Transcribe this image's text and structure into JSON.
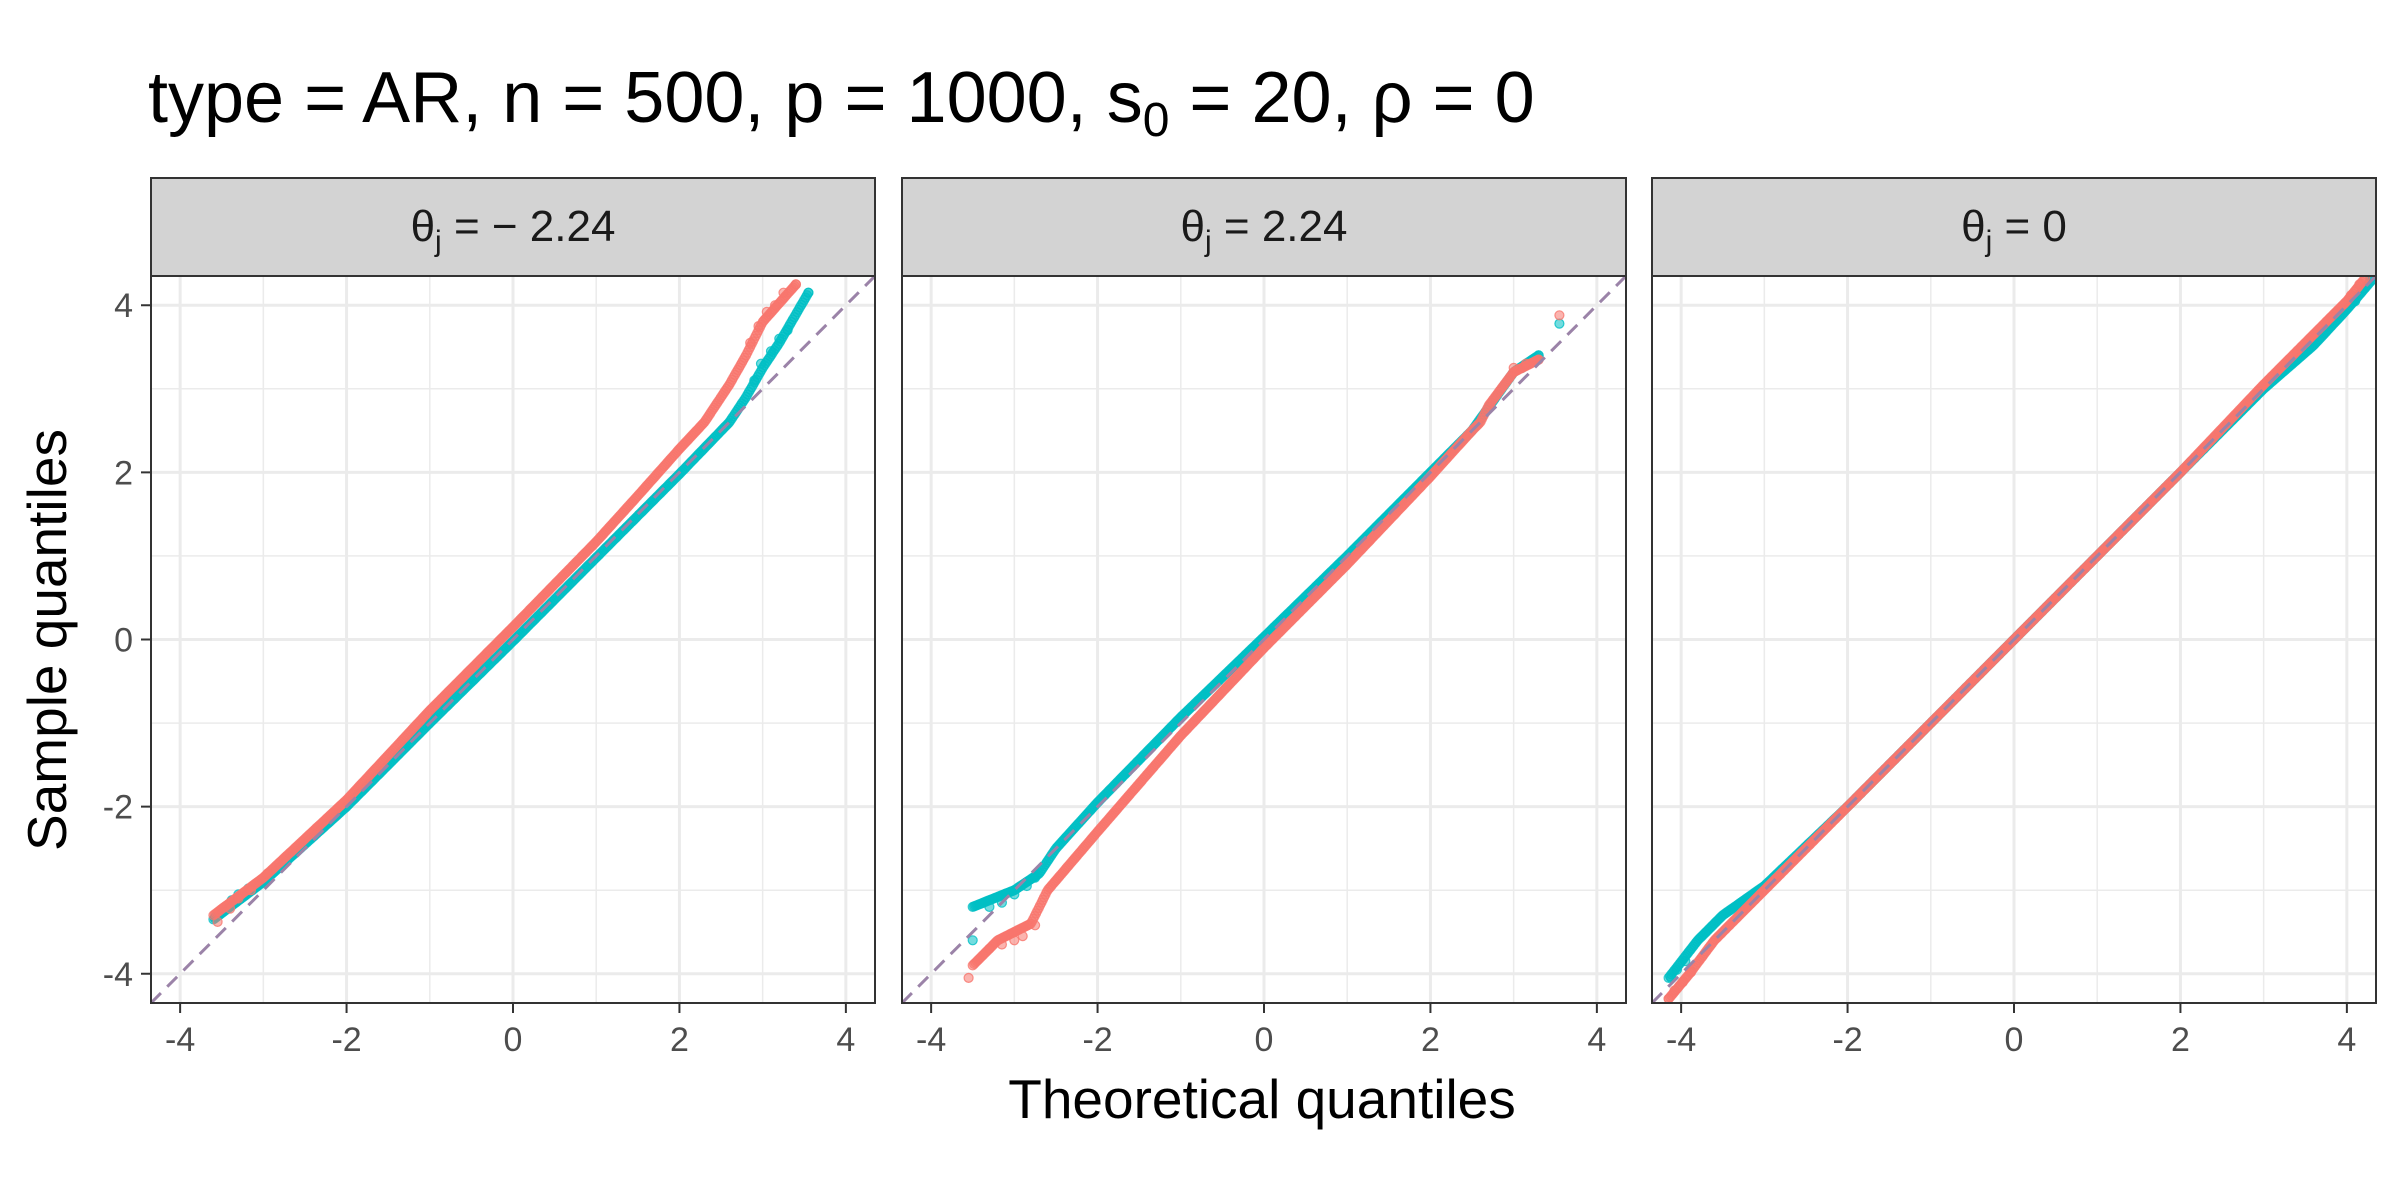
{
  "title": {
    "prefix": "type = AR, n = 500, p = 1000, s",
    "subscript": "0",
    "suffix": " = 20, ρ = 0"
  },
  "xlabel": "Theoretical quantiles",
  "ylabel": "Sample quantiles",
  "colors": {
    "series_red": "#F8766D",
    "series_teal": "#00BFC4",
    "reference_line": "#9B83A8",
    "strip_fill": "#D3D3D3",
    "grid": "#EBEBEB"
  },
  "chart_data": [
    {
      "type": "scatter",
      "panel_label": {
        "symbol": "θ",
        "subscript": "j",
        "value": " = − 2.24"
      },
      "xlim": [
        -4.35,
        4.35
      ],
      "ylim": [
        -4.35,
        4.35
      ],
      "x_ticks": [
        "-4",
        "-2",
        "0",
        "2",
        "4"
      ],
      "y_ticks": [
        "4",
        "2",
        "0",
        "-2",
        "-4"
      ],
      "grid": true,
      "reference_line": {
        "slope": 1,
        "intercept": 0,
        "style": "dashed"
      },
      "series": [
        {
          "color": "#00BFC4",
          "curve": [
            [
              -3.6,
              -3.35
            ],
            [
              -3.0,
              -2.9
            ],
            [
              -2.0,
              -2.0
            ],
            [
              -1.0,
              -1.0
            ],
            [
              0,
              -0.02
            ],
            [
              1.0,
              0.98
            ],
            [
              2.0,
              1.98
            ],
            [
              2.6,
              2.6
            ],
            [
              2.8,
              2.9
            ],
            [
              3.0,
              3.25
            ],
            [
              3.2,
              3.55
            ],
            [
              3.55,
              4.15
            ]
          ],
          "tail_points": [
            [
              -3.58,
              -3.32
            ],
            [
              -3.38,
              -3.12
            ],
            [
              -3.3,
              -3.05
            ],
            [
              -3.18,
              -2.98
            ],
            [
              2.9,
              3.1
            ],
            [
              2.98,
              3.3
            ],
            [
              3.1,
              3.45
            ],
            [
              3.2,
              3.6
            ],
            [
              3.3,
              3.7
            ],
            [
              3.55,
              4.15
            ]
          ]
        },
        {
          "color": "#F8766D",
          "curve": [
            [
              -3.6,
              -3.3
            ],
            [
              -3.0,
              -2.85
            ],
            [
              -2.0,
              -1.92
            ],
            [
              -1.0,
              -0.85
            ],
            [
              0,
              0.15
            ],
            [
              1.0,
              1.17
            ],
            [
              1.5,
              1.72
            ],
            [
              2.0,
              2.28
            ],
            [
              2.3,
              2.6
            ],
            [
              2.6,
              3.05
            ],
            [
              2.8,
              3.4
            ],
            [
              3.0,
              3.8
            ],
            [
              3.4,
              4.25
            ]
          ],
          "tail_points": [
            [
              -3.55,
              -3.38
            ],
            [
              -3.4,
              -3.22
            ],
            [
              -3.3,
              -3.1
            ],
            [
              -3.15,
              -3.0
            ],
            [
              -2.95,
              -2.8
            ],
            [
              2.85,
              3.55
            ],
            [
              2.95,
              3.75
            ],
            [
              3.05,
              3.92
            ],
            [
              3.15,
              4.0
            ],
            [
              3.25,
              4.15
            ],
            [
              3.4,
              4.25
            ]
          ]
        }
      ]
    },
    {
      "type": "scatter",
      "panel_label": {
        "symbol": "θ",
        "subscript": "j",
        "value": " = 2.24"
      },
      "xlim": [
        -4.35,
        4.35
      ],
      "ylim": [
        -4.35,
        4.35
      ],
      "x_ticks": [
        "-4",
        "-2",
        "0",
        "2",
        "4"
      ],
      "y_ticks": [
        "4",
        "2",
        "0",
        "-2",
        "-4"
      ],
      "grid": true,
      "reference_line": {
        "slope": 1,
        "intercept": 0,
        "style": "dashed"
      },
      "series": [
        {
          "color": "#00BFC4",
          "curve": [
            [
              -3.5,
              -3.2
            ],
            [
              -3.0,
              -3.0
            ],
            [
              -2.7,
              -2.8
            ],
            [
              -2.5,
              -2.5
            ],
            [
              -2.0,
              -1.95
            ],
            [
              -1.0,
              -0.93
            ],
            [
              0,
              0.03
            ],
            [
              1.0,
              1.0
            ],
            [
              2.0,
              2.0
            ],
            [
              2.5,
              2.5
            ],
            [
              3.0,
              3.2
            ],
            [
              3.3,
              3.4
            ]
          ],
          "tail_points": [
            [
              -3.5,
              -3.6
            ],
            [
              -3.3,
              -3.2
            ],
            [
              -3.15,
              -3.15
            ],
            [
              -3.0,
              -3.05
            ],
            [
              -2.85,
              -2.95
            ],
            [
              -2.75,
              -2.85
            ],
            [
              3.1,
              3.25
            ],
            [
              3.3,
              3.4
            ],
            [
              3.55,
              3.78
            ]
          ]
        },
        {
          "color": "#F8766D",
          "curve": [
            [
              -3.5,
              -3.9
            ],
            [
              -3.2,
              -3.6
            ],
            [
              -2.8,
              -3.4
            ],
            [
              -2.6,
              -3.0
            ],
            [
              -2.0,
              -2.3
            ],
            [
              -1.0,
              -1.15
            ],
            [
              0,
              -0.1
            ],
            [
              1.0,
              0.9
            ],
            [
              2.0,
              1.95
            ],
            [
              2.5,
              2.5
            ],
            [
              2.6,
              2.6
            ],
            [
              2.7,
              2.8
            ],
            [
              2.85,
              3.0
            ],
            [
              3.0,
              3.2
            ],
            [
              3.3,
              3.35
            ]
          ],
          "tail_points": [
            [
              -3.55,
              -4.05
            ],
            [
              -3.3,
              -3.7
            ],
            [
              -3.15,
              -3.65
            ],
            [
              -3.0,
              -3.6
            ],
            [
              -2.9,
              -3.55
            ],
            [
              -2.75,
              -3.42
            ],
            [
              3.0,
              3.25
            ],
            [
              3.15,
              3.3
            ],
            [
              3.3,
              3.35
            ],
            [
              3.55,
              3.88
            ]
          ]
        }
      ]
    },
    {
      "type": "scatter",
      "panel_label": {
        "symbol": "θ",
        "subscript": "j",
        "value": " = 0"
      },
      "xlim": [
        -4.35,
        4.35
      ],
      "ylim": [
        -4.35,
        4.35
      ],
      "x_ticks": [
        "-4",
        "-2",
        "0",
        "2",
        "4"
      ],
      "y_ticks": [
        "4",
        "2",
        "0",
        "-2",
        "-4"
      ],
      "grid": true,
      "reference_line": {
        "slope": 1,
        "intercept": 0,
        "style": "dashed"
      },
      "series": [
        {
          "color": "#00BFC4",
          "curve": [
            [
              -4.15,
              -4.05
            ],
            [
              -3.8,
              -3.6
            ],
            [
              -3.5,
              -3.3
            ],
            [
              -3.0,
              -2.95
            ],
            [
              -2.0,
              -2.0
            ],
            [
              0,
              0
            ],
            [
              2.0,
              2.0
            ],
            [
              3.0,
              3.0
            ],
            [
              3.6,
              3.52
            ],
            [
              4.0,
              3.95
            ],
            [
              4.3,
              4.3
            ]
          ],
          "tail_points": [
            [
              -4.12,
              -4.05
            ],
            [
              -4.05,
              -3.95
            ],
            [
              -3.95,
              -3.85
            ],
            [
              4.1,
              4.05
            ],
            [
              4.2,
              4.2
            ],
            [
              4.28,
              4.32
            ]
          ]
        },
        {
          "color": "#F8766D",
          "curve": [
            [
              -4.15,
              -4.3
            ],
            [
              -3.9,
              -4.0
            ],
            [
              -3.6,
              -3.6
            ],
            [
              -3.0,
              -3.0
            ],
            [
              -2.0,
              -2.0
            ],
            [
              0,
              0
            ],
            [
              2.0,
              2.0
            ],
            [
              3.0,
              3.05
            ],
            [
              3.5,
              3.55
            ],
            [
              4.0,
              4.05
            ],
            [
              4.2,
              4.3
            ]
          ],
          "tail_points": [
            [
              -4.15,
              -4.3
            ],
            [
              -4.08,
              -4.2
            ],
            [
              -3.98,
              -4.1
            ],
            [
              -3.88,
              -3.98
            ],
            [
              4.05,
              4.12
            ],
            [
              4.15,
              4.25
            ],
            [
              4.22,
              4.33
            ]
          ]
        }
      ]
    }
  ]
}
